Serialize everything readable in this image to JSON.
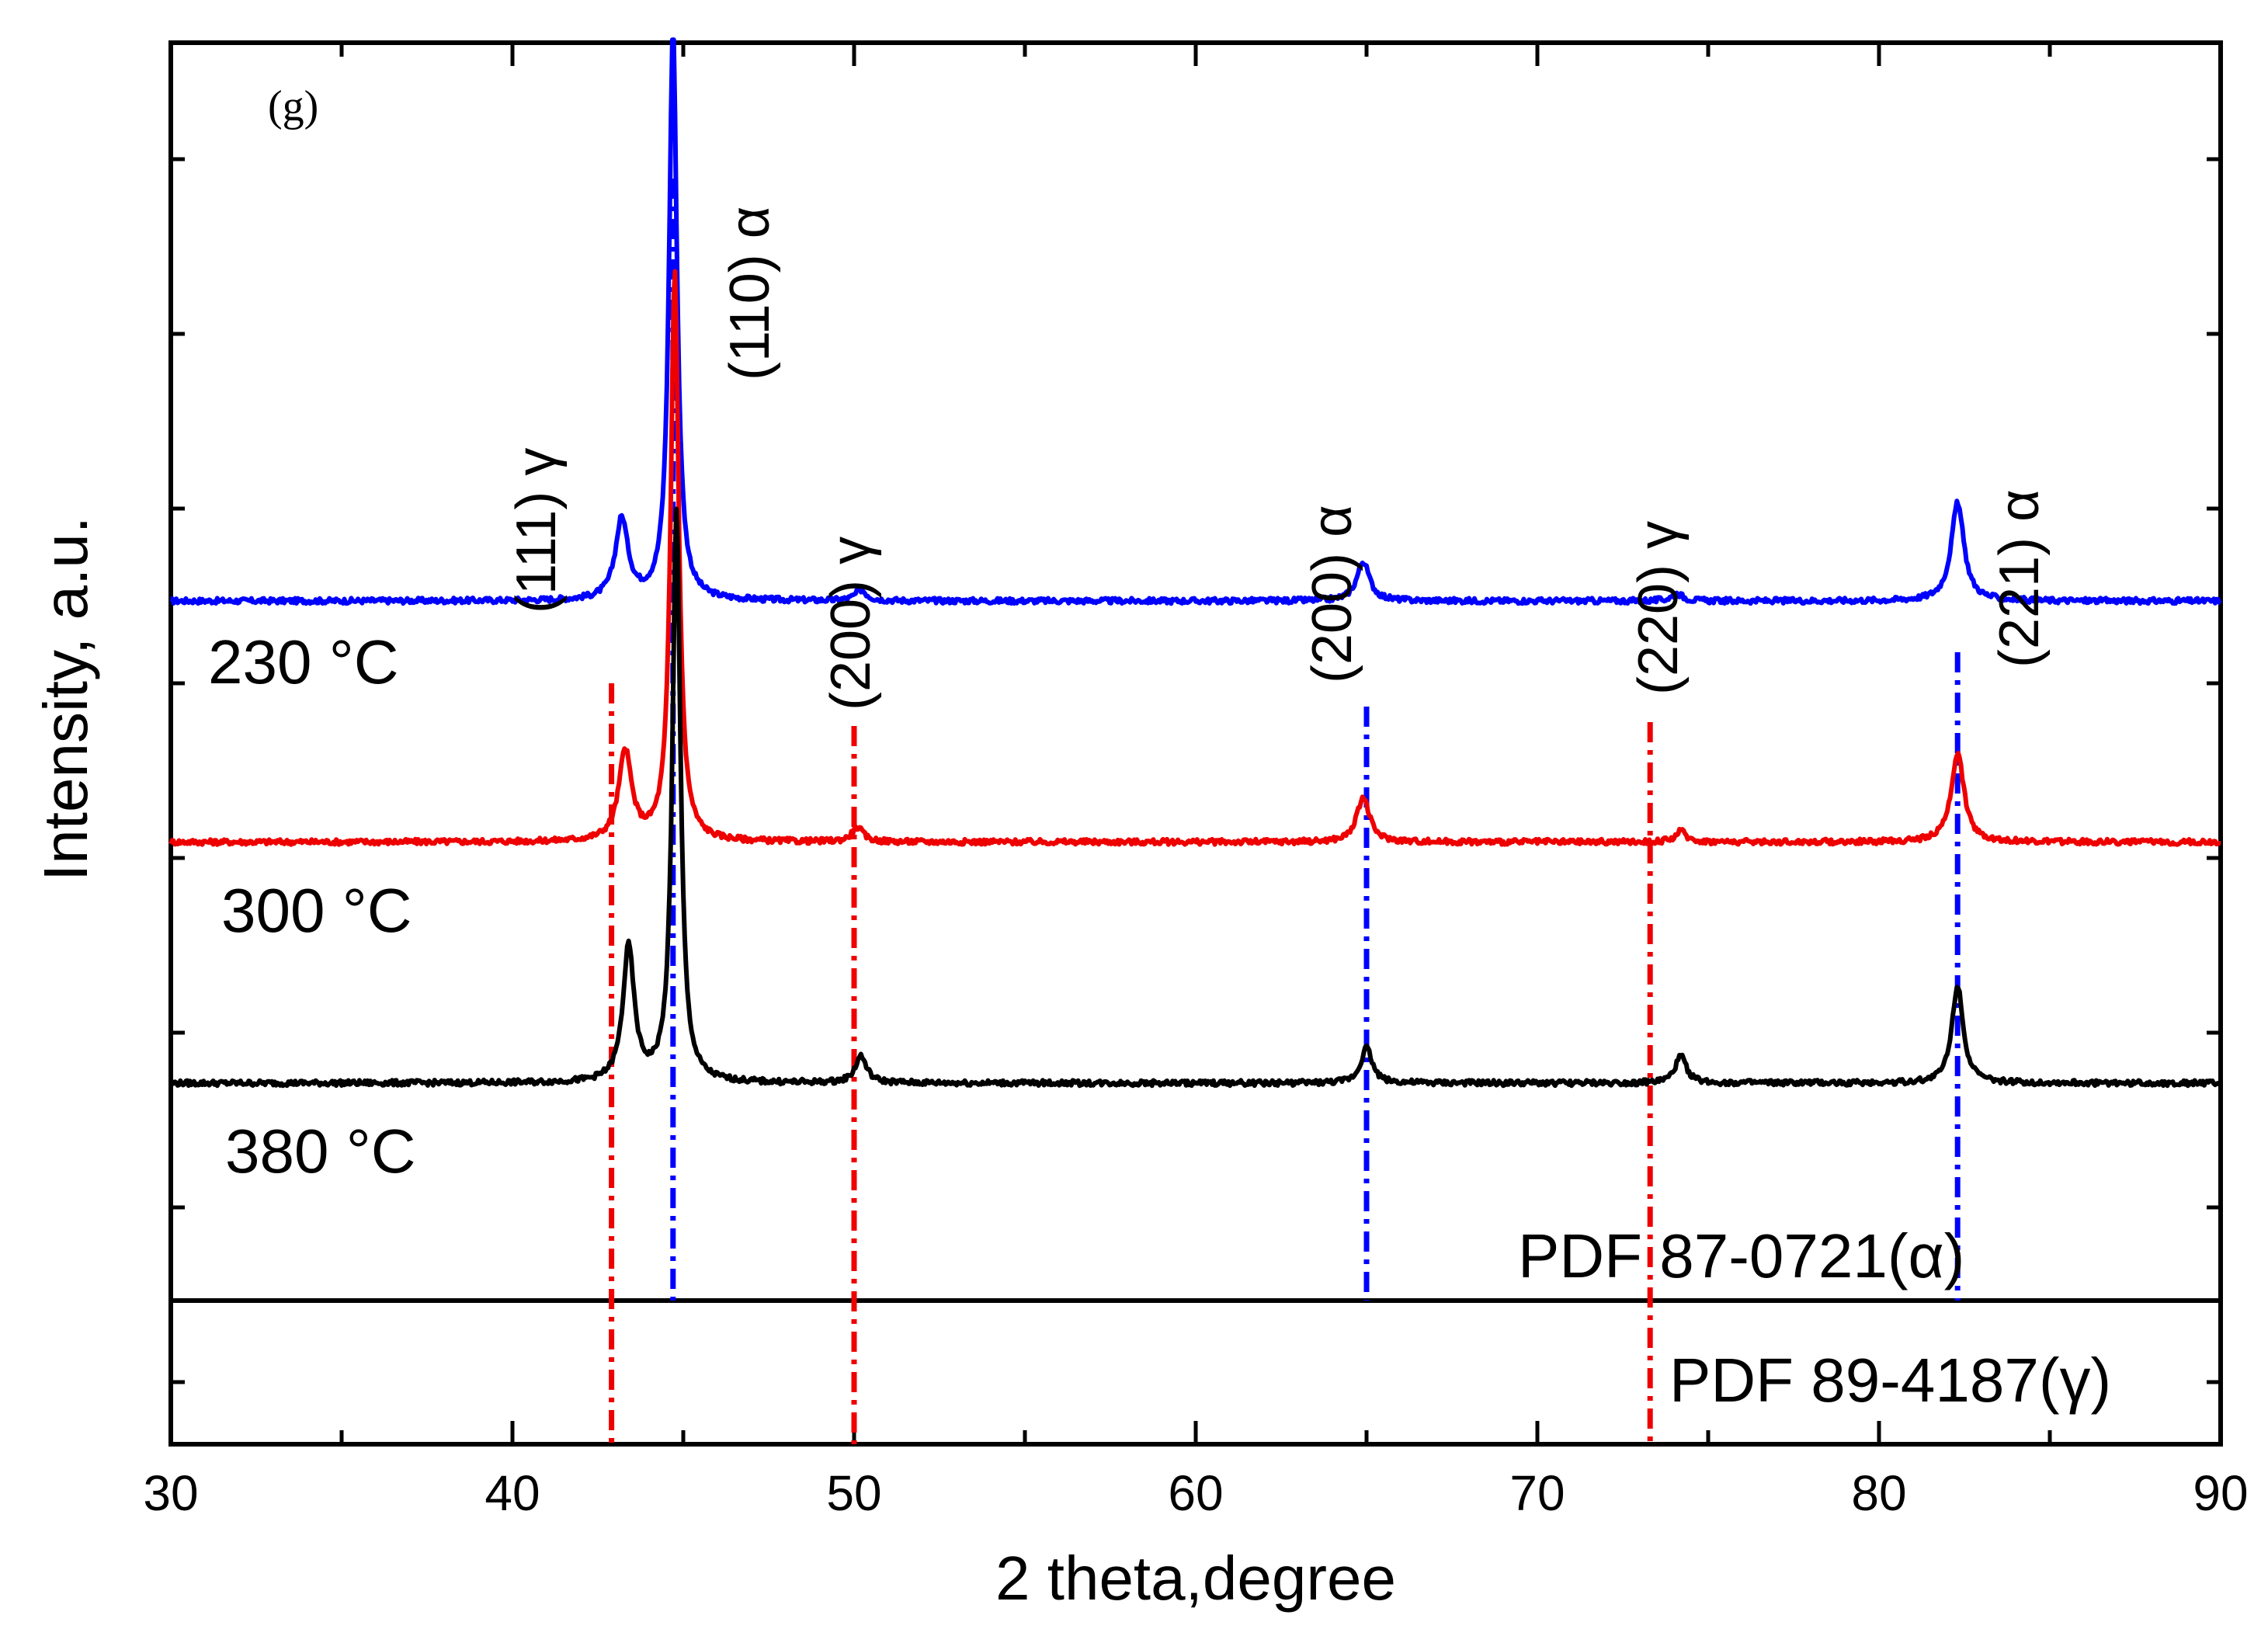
{
  "chart_data": {
    "type": "line",
    "panel_label": "(g)",
    "xlabel": "2 theta,degree",
    "ylabel": "Intensity, a.u.",
    "xlim": [
      30,
      90
    ],
    "x_ticks": [
      "30",
      "40",
      "50",
      "60",
      "70",
      "80",
      "90"
    ],
    "series": [
      {
        "name": "230 °C",
        "color": "#0000ff",
        "baseline": 6.2,
        "peaks": [
          {
            "x": 43.2,
            "height": 0.45,
            "width": 0.45
          },
          {
            "x": 44.7,
            "height": 3.2,
            "width": 0.28
          },
          {
            "x": 50.2,
            "height": 0.06,
            "width": 0.4
          },
          {
            "x": 64.9,
            "height": 0.22,
            "width": 0.45
          },
          {
            "x": 74.1,
            "height": 0.04,
            "width": 0.4
          },
          {
            "x": 82.3,
            "height": 0.55,
            "width": 0.45
          }
        ]
      },
      {
        "name": "300 °C",
        "color": "#ee0000",
        "baseline": 4.85,
        "peaks": [
          {
            "x": 43.3,
            "height": 0.5,
            "width": 0.45
          },
          {
            "x": 44.75,
            "height": 3.2,
            "width": 0.28
          },
          {
            "x": 50.1,
            "height": 0.08,
            "width": 0.4
          },
          {
            "x": 64.9,
            "height": 0.25,
            "width": 0.45
          },
          {
            "x": 74.2,
            "height": 0.06,
            "width": 0.4
          },
          {
            "x": 82.3,
            "height": 0.5,
            "width": 0.45
          }
        ]
      },
      {
        "name": "380 °C",
        "color": "#000000",
        "baseline": 3.5,
        "peaks": [
          {
            "x": 43.4,
            "height": 0.75,
            "width": 0.4
          },
          {
            "x": 44.8,
            "height": 3.2,
            "width": 0.28
          },
          {
            "x": 50.2,
            "height": 0.15,
            "width": 0.4
          },
          {
            "x": 65.0,
            "height": 0.2,
            "width": 0.4
          },
          {
            "x": 74.2,
            "height": 0.15,
            "width": 0.4
          },
          {
            "x": 82.3,
            "height": 0.55,
            "width": 0.4
          }
        ]
      }
    ],
    "reference_lines": [
      {
        "name": "PDF 87-0721(α)",
        "color": "#0000ff",
        "positions": [
          44.7,
          65.0,
          82.3
        ]
      },
      {
        "name": "PDF 89-4187(γ)",
        "color": "#ee0000",
        "positions": [
          42.9,
          50.0,
          73.3
        ]
      }
    ],
    "peak_labels": [
      {
        "text": "(111) γ",
        "x": 41.0
      },
      {
        "text": "(110) α",
        "x": 46.5
      },
      {
        "text": "(200) γ",
        "x": 51.0
      },
      {
        "text": "(200) α",
        "x": 64.5
      },
      {
        "text": "(220) γ",
        "x": 74.6
      },
      {
        "text": "(221) α",
        "x": 84.5
      }
    ]
  }
}
